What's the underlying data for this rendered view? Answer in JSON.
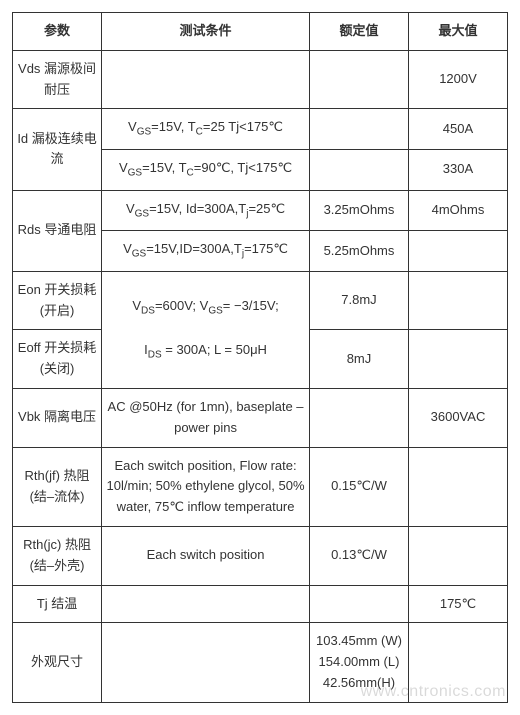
{
  "headers": {
    "param": "参数",
    "condition": "测试条件",
    "rated": "额定值",
    "max": "最大值"
  },
  "rows": {
    "vds": {
      "param": "Vds 漏源极间耐压",
      "cond": "",
      "rated": "",
      "max": "1200V"
    },
    "id1": {
      "param": "Id 漏极连续电流",
      "cond": "VGS=15V, TC=25 Tj<175℃",
      "rated": "",
      "max": "450A"
    },
    "id2": {
      "cond": "VGS=15V, TC=90℃, Tj<175℃",
      "rated": "",
      "max": "330A"
    },
    "rds1": {
      "param": "Rds 导通电阻",
      "cond": "VGS=15V, Id=300A,Tj=25℃",
      "rated": "3.25mOhms",
      "max": "4mOhms"
    },
    "rds2": {
      "cond": "VGS=15V,ID=300A,Tj=175℃",
      "rated": "5.25mOhms",
      "max": ""
    },
    "eon": {
      "param": "Eon 开关损耗(开启)",
      "cond_line1": "VDS=600V; VGS= −3/15V;",
      "cond_line2": "IDS = 300A; L = 50μH",
      "rated": "7.8mJ",
      "max": ""
    },
    "eoff": {
      "param": "Eoff 开关损耗(关闭)",
      "rated": "8mJ",
      "max": ""
    },
    "vbk": {
      "param": "Vbk 隔离电压",
      "cond": "AC @50Hz (for 1mn), baseplate – power pins",
      "rated": "",
      "max": "3600VAC"
    },
    "rthjf": {
      "param": "Rth(jf) 热阻 (结–流体)",
      "cond": "Each switch position, Flow rate: 10l/min; 50% ethylene glycol, 50% water, 75℃ inflow temperature",
      "rated": "0.15℃/W",
      "max": ""
    },
    "rthjc": {
      "param": "Rth(jc) 热阻 (结–外壳)",
      "cond": "Each switch position",
      "rated": "0.13℃/W",
      "max": ""
    },
    "tj": {
      "param": "Tj 结温",
      "cond": "",
      "rated": "",
      "max": "175℃"
    },
    "dim": {
      "param": "外观尺寸",
      "cond": "",
      "rated_line1": "103.45mm (W)",
      "rated_line2": "154.00mm (L)",
      "rated_line3": "42.56mm(H)",
      "max": ""
    }
  },
  "watermark": "www.cntronics.com",
  "style": {
    "border_color": "#333333",
    "text_color": "#333333",
    "bg_color": "#ffffff",
    "font_size_body": 13,
    "font_size_sub": 10,
    "watermark_color": "rgba(0,0,0,0.15)",
    "col_widths_pct": [
      18,
      42,
      20,
      20
    ]
  }
}
